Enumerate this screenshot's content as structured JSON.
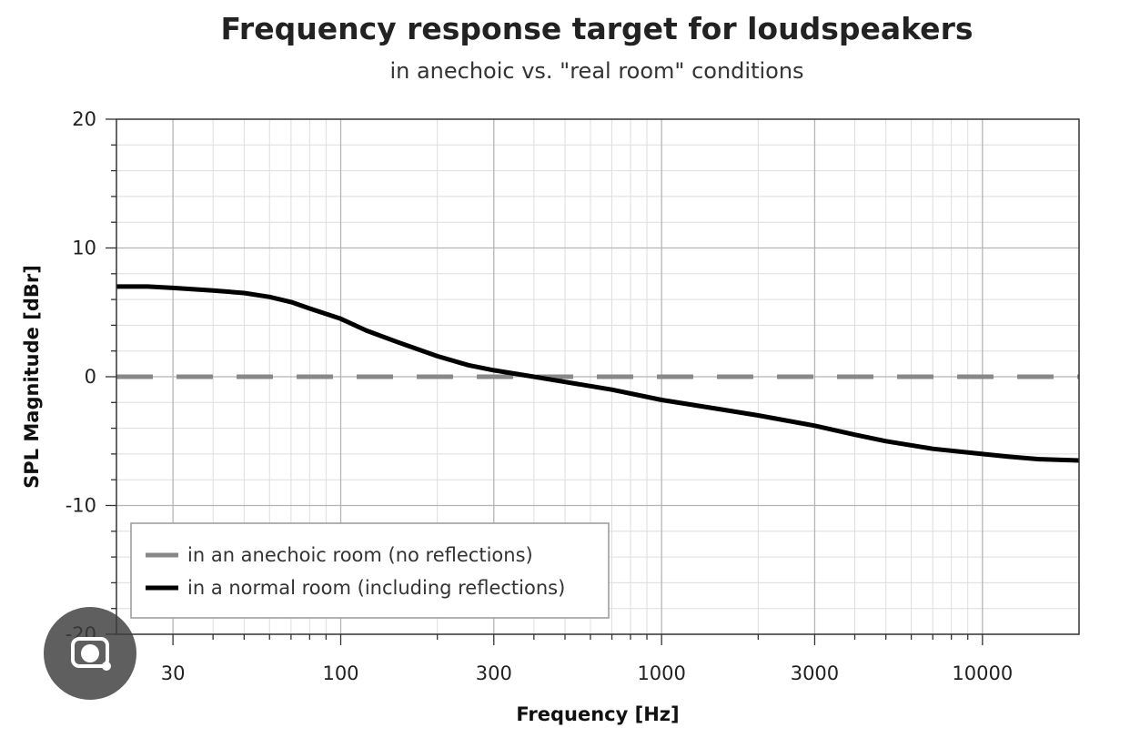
{
  "chart_data": {
    "type": "line",
    "title": "Frequency response target for loudspeakers",
    "subtitle": "in anechoic vs. \"real room\" conditions",
    "xlabel": "Frequency [Hz]",
    "ylabel": "SPL Magnitude [dBr]",
    "xscale": "log",
    "xlim": [
      20,
      20000
    ],
    "ylim": [
      -20,
      20
    ],
    "x_ticks": [
      30,
      100,
      300,
      1000,
      3000,
      10000
    ],
    "x_tick_labels": [
      "30",
      "100",
      "300",
      "1000",
      "3000",
      "10000"
    ],
    "y_ticks": [
      -20,
      -10,
      0,
      10,
      20
    ],
    "y_tick_labels": [
      "-20",
      "-10",
      "0",
      "10",
      "20"
    ],
    "grid": true,
    "legend_position": "bottom-left",
    "series": [
      {
        "name": "in an anechoic room (no reflections)",
        "color": "#888888",
        "style": "dashed",
        "x": [
          20,
          20000
        ],
        "y": [
          0,
          0
        ]
      },
      {
        "name": "in a normal room (including reflections)",
        "color": "#000000",
        "style": "solid",
        "x": [
          20,
          25,
          30,
          40,
          50,
          60,
          70,
          80,
          100,
          120,
          150,
          200,
          250,
          300,
          400,
          500,
          700,
          1000,
          1500,
          2000,
          3000,
          4000,
          5000,
          7000,
          10000,
          12000,
          15000,
          20000
        ],
        "y": [
          7.0,
          7.0,
          6.9,
          6.7,
          6.5,
          6.2,
          5.8,
          5.3,
          4.5,
          3.6,
          2.7,
          1.6,
          0.9,
          0.5,
          0.0,
          -0.4,
          -1.0,
          -1.8,
          -2.5,
          -3.0,
          -3.8,
          -4.5,
          -5.0,
          -5.6,
          -6.0,
          -6.2,
          -6.4,
          -6.5
        ]
      }
    ]
  },
  "overlay": {
    "lens_button_icon": "google-lens-icon"
  }
}
